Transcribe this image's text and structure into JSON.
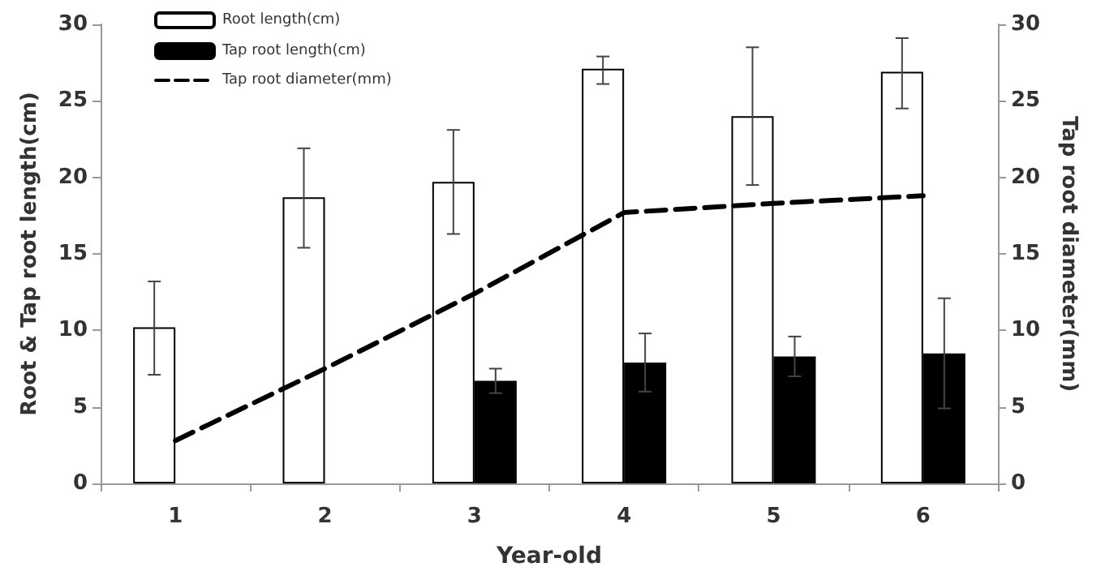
{
  "chart_data": {
    "type": "bar",
    "xlabel": "Year-old",
    "ylabel": "Root & Tap root length(cm)",
    "y2label": "Tap root diameter(mm)",
    "categories": [
      "1",
      "2",
      "3",
      "4",
      "5",
      "6"
    ],
    "series": [
      {
        "name": "Root length(cm)",
        "color": "#ffffff",
        "values": [
          10.2,
          18.7,
          19.7,
          27.1,
          24.0,
          26.9
        ],
        "errors": [
          [
            7.1,
            13.2
          ],
          [
            15.4,
            21.9
          ],
          [
            16.3,
            23.1
          ],
          [
            26.1,
            27.9
          ],
          [
            19.5,
            28.5
          ],
          [
            24.5,
            29.1
          ]
        ]
      },
      {
        "name": "Tap root length(cm)",
        "color": "#000000",
        "values": [
          null,
          null,
          6.7,
          7.9,
          8.3,
          8.5
        ],
        "errors": [
          null,
          null,
          [
            5.9,
            7.5
          ],
          [
            6.0,
            9.8
          ],
          [
            7.0,
            9.6
          ],
          [
            4.9,
            12.1
          ]
        ]
      },
      {
        "name": "Tap root diameter(mm)",
        "type": "line",
        "axis": "y2",
        "color": "#000000",
        "line_style": "dashed",
        "marker": "none",
        "values": [
          2.8,
          7.5,
          12.4,
          17.7,
          18.3,
          18.8
        ]
      }
    ],
    "ylim": [
      0,
      30
    ],
    "yticks": [
      0,
      5,
      10,
      15,
      20,
      25,
      30
    ],
    "y2lim": [
      0,
      30
    ],
    "y2ticks": [
      0,
      5,
      10,
      15,
      20,
      25,
      30
    ],
    "grid": false,
    "legend": "top left"
  }
}
